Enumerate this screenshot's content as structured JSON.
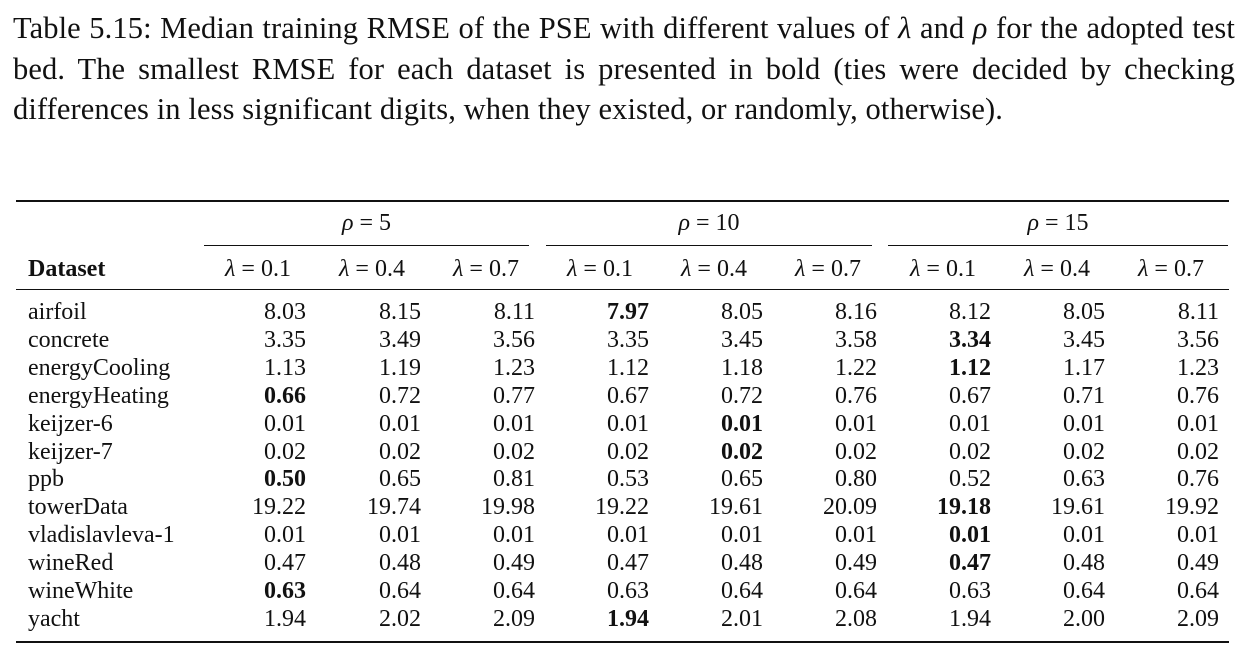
{
  "caption": {
    "label": "Table 5.15:",
    "text_before_lambda": "Median training RMSE of the PSE with different values of",
    "lambda": "λ",
    "and": "and",
    "rho": "ρ",
    "text_after_rho": "for the adopted test bed. The smallest RMSE for each dataset is presented in bold (ties were decided by checking differences in less significant digits, when they existed, or randomly, otherwise)."
  },
  "table": {
    "dataset_header": "Dataset",
    "groups": [
      {
        "sym": "ρ",
        "label": " = 5"
      },
      {
        "sym": "ρ",
        "label": " = 10"
      },
      {
        "sym": "ρ",
        "label": " = 15"
      }
    ],
    "columns": [
      {
        "sym": "λ",
        "label": " = 0.1"
      },
      {
        "sym": "λ",
        "label": " = 0.4"
      },
      {
        "sym": "λ",
        "label": " = 0.7"
      },
      {
        "sym": "λ",
        "label": " = 0.1"
      },
      {
        "sym": "λ",
        "label": " = 0.4"
      },
      {
        "sym": "λ",
        "label": " = 0.7"
      },
      {
        "sym": "λ",
        "label": " = 0.1"
      },
      {
        "sym": "λ",
        "label": " = 0.4"
      },
      {
        "sym": "λ",
        "label": " = 0.7"
      }
    ],
    "rows": [
      {
        "name": "airfoil",
        "values": [
          "8.03",
          "8.15",
          "8.11",
          "7.97",
          "8.05",
          "8.16",
          "8.12",
          "8.05",
          "8.11"
        ],
        "bold_index": 3
      },
      {
        "name": "concrete",
        "values": [
          "3.35",
          "3.49",
          "3.56",
          "3.35",
          "3.45",
          "3.58",
          "3.34",
          "3.45",
          "3.56"
        ],
        "bold_index": 6
      },
      {
        "name": "energyCooling",
        "values": [
          "1.13",
          "1.19",
          "1.23",
          "1.12",
          "1.18",
          "1.22",
          "1.12",
          "1.17",
          "1.23"
        ],
        "bold_index": 6
      },
      {
        "name": "energyHeating",
        "values": [
          "0.66",
          "0.72",
          "0.77",
          "0.67",
          "0.72",
          "0.76",
          "0.67",
          "0.71",
          "0.76"
        ],
        "bold_index": 0
      },
      {
        "name": "keijzer-6",
        "values": [
          "0.01",
          "0.01",
          "0.01",
          "0.01",
          "0.01",
          "0.01",
          "0.01",
          "0.01",
          "0.01"
        ],
        "bold_index": 4
      },
      {
        "name": "keijzer-7",
        "values": [
          "0.02",
          "0.02",
          "0.02",
          "0.02",
          "0.02",
          "0.02",
          "0.02",
          "0.02",
          "0.02"
        ],
        "bold_index": 4
      },
      {
        "name": "ppb",
        "values": [
          "0.50",
          "0.65",
          "0.81",
          "0.53",
          "0.65",
          "0.80",
          "0.52",
          "0.63",
          "0.76"
        ],
        "bold_index": 0
      },
      {
        "name": "towerData",
        "values": [
          "19.22",
          "19.74",
          "19.98",
          "19.22",
          "19.61",
          "20.09",
          "19.18",
          "19.61",
          "19.92"
        ],
        "bold_index": 6
      },
      {
        "name": "vladislavleva-1",
        "values": [
          "0.01",
          "0.01",
          "0.01",
          "0.01",
          "0.01",
          "0.01",
          "0.01",
          "0.01",
          "0.01"
        ],
        "bold_index": 6
      },
      {
        "name": "wineRed",
        "values": [
          "0.47",
          "0.48",
          "0.49",
          "0.47",
          "0.48",
          "0.49",
          "0.47",
          "0.48",
          "0.49"
        ],
        "bold_index": 6
      },
      {
        "name": "wineWhite",
        "values": [
          "0.63",
          "0.64",
          "0.64",
          "0.63",
          "0.64",
          "0.64",
          "0.63",
          "0.64",
          "0.64"
        ],
        "bold_index": 0
      },
      {
        "name": "yacht",
        "values": [
          "1.94",
          "2.02",
          "2.09",
          "1.94",
          "2.01",
          "2.08",
          "1.94",
          "2.00",
          "2.09"
        ],
        "bold_index": 3
      }
    ]
  }
}
